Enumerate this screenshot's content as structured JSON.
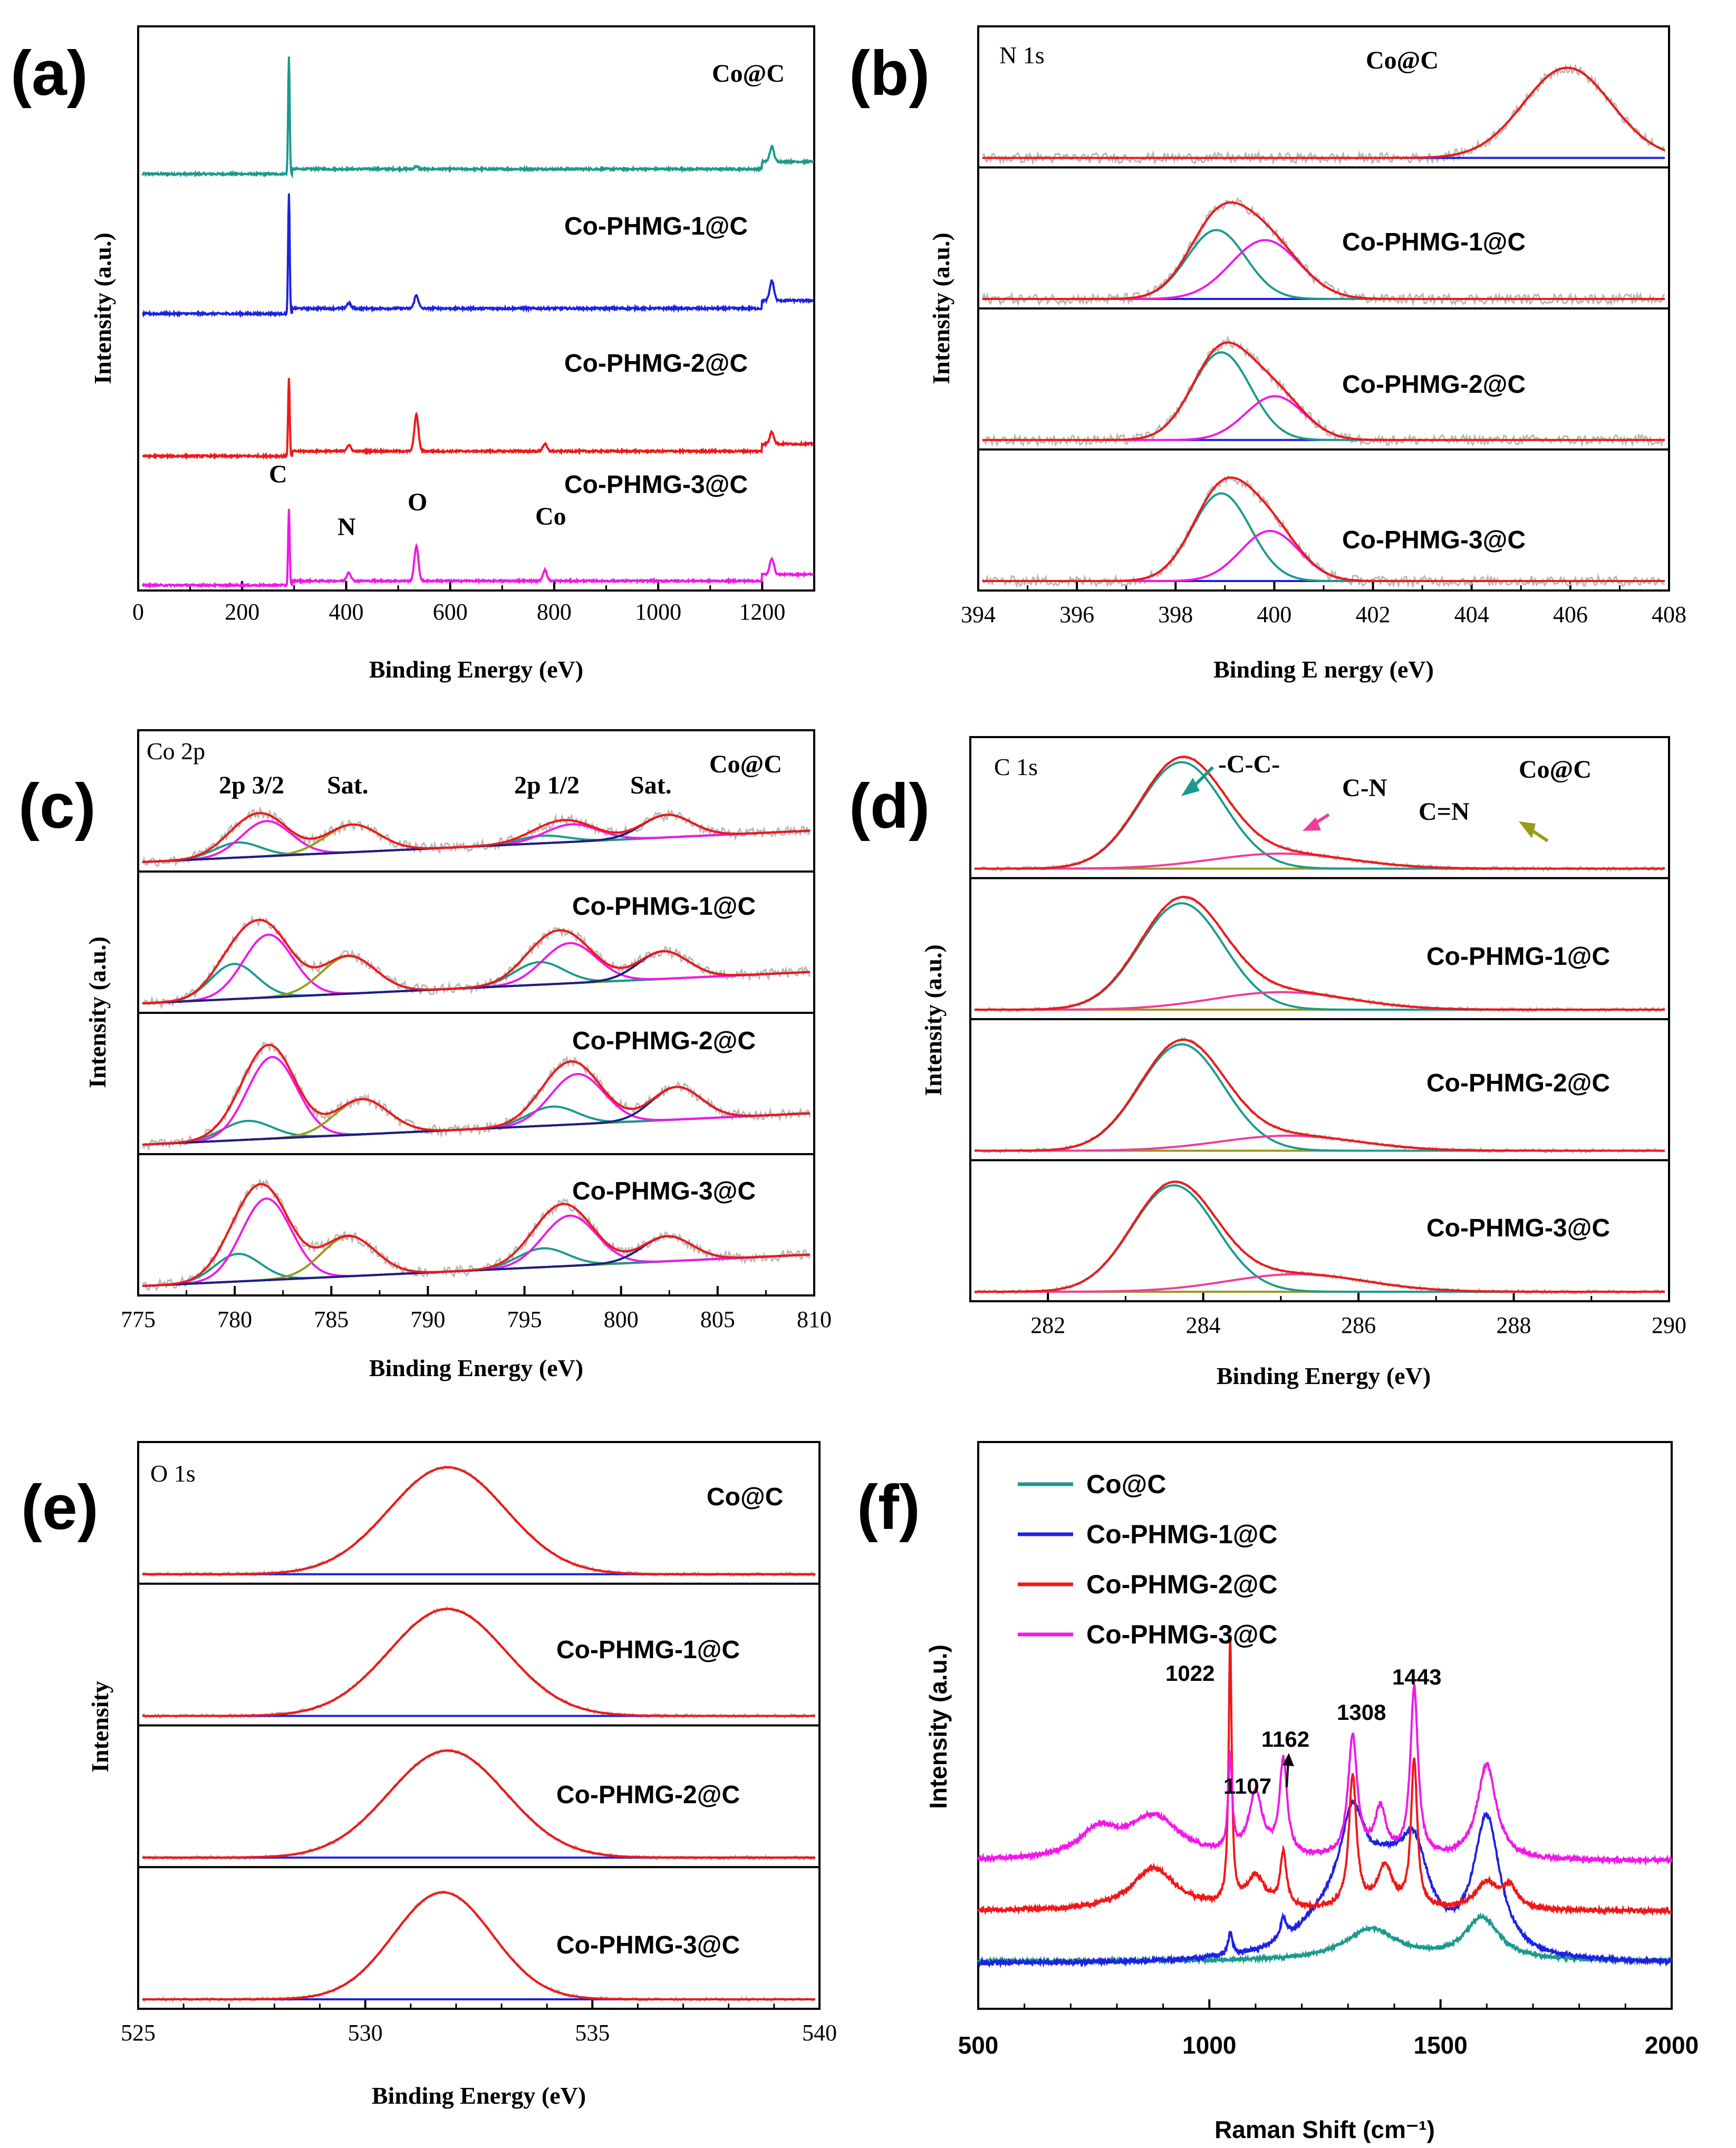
{
  "figure": {
    "panels": [
      "(a)",
      "(b)",
      "(c)",
      "(d)",
      "(e)",
      "(f)"
    ]
  },
  "colors": {
    "teal": "#1a9a8c",
    "blue": "#1e22e0",
    "red": "#f01818",
    "magenta": "#f018e8",
    "gray": "#b8b8b8",
    "olive": "#9a9a1a",
    "navy": "#1a2080",
    "pink": "#f03c9c"
  },
  "chart_data": [
    {
      "panel": "(a)",
      "type": "line",
      "xlabel": "Binding Energy (eV)",
      "ylabel": "Intensity (a.u.)",
      "xlim": [
        0,
        1300
      ],
      "xticks": [
        "0",
        "200",
        "400",
        "600",
        "800",
        "1000",
        "1200"
      ],
      "series": [
        {
          "name": "Co@C",
          "peaks": [
            {
              "x": 284,
              "h": 0.95
            },
            {
              "x": 531,
              "h": 0.02
            },
            {
              "x": 1220,
              "h": 0.12
            }
          ]
        },
        {
          "name": "Co-PHMG-1@C",
          "peaks": [
            {
              "x": 284,
              "h": 0.92
            },
            {
              "x": 400,
              "h": 0.04
            },
            {
              "x": 531,
              "h": 0.1
            },
            {
              "x": 1220,
              "h": 0.15
            }
          ]
        },
        {
          "name": "Co-PHMG-2@C",
          "peaks": [
            {
              "x": 284,
              "h": 0.65
            },
            {
              "x": 400,
              "h": 0.05
            },
            {
              "x": 531,
              "h": 0.3
            },
            {
              "x": 780,
              "h": 0.06
            },
            {
              "x": 1220,
              "h": 0.1
            }
          ]
        },
        {
          "name": "Co-PHMG-3@C",
          "peaks": [
            {
              "x": 284,
              "h": 0.7
            },
            {
              "x": 400,
              "h": 0.08
            },
            {
              "x": 531,
              "h": 0.32
            },
            {
              "x": 780,
              "h": 0.1
            },
            {
              "x": 1220,
              "h": 0.15
            }
          ]
        }
      ],
      "annotations": [
        "C",
        "N",
        "O",
        "Co"
      ]
    },
    {
      "panel": "(b)",
      "type": "line",
      "title": "N 1s",
      "xlabel": "Binding E nergy (eV)",
      "ylabel": "Intensity (a.u.)",
      "xlim": [
        394,
        408
      ],
      "xticks": [
        "394",
        "396",
        "398",
        "400",
        "402",
        "404",
        "406",
        "408"
      ],
      "samples": [
        {
          "name": "Co@C",
          "components": [
            {
              "x0": 406.0,
              "sigma": 0.9,
              "h": 0.72
            }
          ]
        },
        {
          "name": "Co-PHMG-1@C",
          "components": [
            {
              "x0": 398.8,
              "sigma": 0.6,
              "h": 0.55
            },
            {
              "x0": 399.8,
              "sigma": 0.7,
              "h": 0.47
            }
          ]
        },
        {
          "name": "Co-PHMG-2@C",
          "components": [
            {
              "x0": 398.9,
              "sigma": 0.6,
              "h": 0.7
            },
            {
              "x0": 400.0,
              "sigma": 0.6,
              "h": 0.35
            }
          ]
        },
        {
          "name": "Co-PHMG-3@C",
          "components": [
            {
              "x0": 398.9,
              "sigma": 0.6,
              "h": 0.7
            },
            {
              "x0": 399.9,
              "sigma": 0.6,
              "h": 0.4
            }
          ]
        }
      ]
    },
    {
      "panel": "(c)",
      "type": "line",
      "title": "Co 2p",
      "xlabel": "Binding Energy (eV)",
      "ylabel": "Intensity (a.u.)",
      "xlim": [
        775,
        810
      ],
      "xticks": [
        "775",
        "780",
        "785",
        "790",
        "795",
        "800",
        "805",
        "810"
      ],
      "peak_labels": [
        "2p 3/2",
        "Sat.",
        "2p 1/2",
        "Sat."
      ],
      "samples": [
        {
          "name": "Co@C",
          "components": [
            {
              "x0": 780.0,
              "sigma": 1.2,
              "h": 0.12
            },
            {
              "x0": 781.5,
              "sigma": 1.3,
              "h": 0.28
            },
            {
              "x0": 786.0,
              "sigma": 1.4,
              "h": 0.22
            },
            {
              "x0": 796.0,
              "sigma": 1.3,
              "h": 0.06
            },
            {
              "x0": 797.5,
              "sigma": 1.4,
              "h": 0.14
            },
            {
              "x0": 802.5,
              "sigma": 1.3,
              "h": 0.18
            }
          ]
        },
        {
          "name": "Co-PHMG-1@C",
          "components": [
            {
              "x0": 779.8,
              "sigma": 1.2,
              "h": 0.28
            },
            {
              "x0": 781.6,
              "sigma": 1.3,
              "h": 0.5
            },
            {
              "x0": 785.8,
              "sigma": 1.4,
              "h": 0.3
            },
            {
              "x0": 795.8,
              "sigma": 1.3,
              "h": 0.18
            },
            {
              "x0": 797.4,
              "sigma": 1.4,
              "h": 0.32
            },
            {
              "x0": 802.3,
              "sigma": 1.3,
              "h": 0.22
            }
          ]
        },
        {
          "name": "Co-PHMG-2@C",
          "components": [
            {
              "x0": 780.5,
              "sigma": 1.3,
              "h": 0.15
            },
            {
              "x0": 781.8,
              "sigma": 1.3,
              "h": 0.65
            },
            {
              "x0": 786.5,
              "sigma": 1.4,
              "h": 0.28
            },
            {
              "x0": 796.5,
              "sigma": 1.3,
              "h": 0.15
            },
            {
              "x0": 797.8,
              "sigma": 1.4,
              "h": 0.4
            },
            {
              "x0": 803.0,
              "sigma": 1.3,
              "h": 0.26
            }
          ]
        },
        {
          "name": "Co-PHMG-3@C",
          "components": [
            {
              "x0": 780.0,
              "sigma": 1.2,
              "h": 0.22
            },
            {
              "x0": 781.5,
              "sigma": 1.3,
              "h": 0.65
            },
            {
              "x0": 785.8,
              "sigma": 1.4,
              "h": 0.32
            },
            {
              "x0": 796.0,
              "sigma": 1.3,
              "h": 0.15
            },
            {
              "x0": 797.4,
              "sigma": 1.4,
              "h": 0.4
            },
            {
              "x0": 802.5,
              "sigma": 1.3,
              "h": 0.2
            }
          ]
        }
      ]
    },
    {
      "panel": "(d)",
      "type": "line",
      "title": "C 1s",
      "xlabel": "Binding Energy (eV)",
      "ylabel": "Intensity (a.u.)",
      "xlim": [
        281,
        290
      ],
      "xticks": [
        "282",
        "284",
        "286",
        "288",
        "290"
      ],
      "annotations": [
        "-C-C-",
        "C-N",
        "C=N"
      ],
      "samples": [
        {
          "name": "Co@C",
          "components": [
            {
              "x0": 283.7,
              "sigma": 0.55,
              "h": 0.85
            },
            {
              "x0": 285.0,
              "sigma": 0.9,
              "h": 0.12
            }
          ]
        },
        {
          "name": "Co-PHMG-1@C",
          "components": [
            {
              "x0": 283.7,
              "sigma": 0.55,
              "h": 0.85
            },
            {
              "x0": 285.0,
              "sigma": 0.9,
              "h": 0.14
            }
          ]
        },
        {
          "name": "Co-PHMG-2@C",
          "components": [
            {
              "x0": 283.7,
              "sigma": 0.55,
              "h": 0.85
            },
            {
              "x0": 285.1,
              "sigma": 0.9,
              "h": 0.12
            }
          ]
        },
        {
          "name": "Co-PHMG-3@C",
          "components": [
            {
              "x0": 283.6,
              "sigma": 0.55,
              "h": 0.85
            },
            {
              "x0": 285.2,
              "sigma": 0.9,
              "h": 0.14
            }
          ]
        }
      ]
    },
    {
      "panel": "(e)",
      "type": "line",
      "title": "O 1s",
      "xlabel": "Binding Energy (eV)",
      "ylabel": "Intensity",
      "xlim": [
        525,
        540
      ],
      "xticks": [
        "525",
        "530",
        "535",
        "540"
      ],
      "samples": [
        {
          "name": "Co@C",
          "components": [
            {
              "x0": 531.8,
              "sigma": 1.3,
              "h": 0.85
            }
          ]
        },
        {
          "name": "Co-PHMG-1@C",
          "components": [
            {
              "x0": 531.8,
              "sigma": 1.3,
              "h": 0.85
            }
          ]
        },
        {
          "name": "Co-PHMG-2@C",
          "components": [
            {
              "x0": 531.8,
              "sigma": 1.3,
              "h": 0.85
            }
          ]
        },
        {
          "name": "Co-PHMG-3@C",
          "components": [
            {
              "x0": 531.7,
              "sigma": 1.1,
              "h": 0.85
            }
          ]
        }
      ]
    },
    {
      "panel": "(f)",
      "type": "line",
      "xlabel": "Raman Shift (cm⁻¹)",
      "ylabel": "Intensity (a.u.)",
      "xlim": [
        500,
        2000
      ],
      "xticks": [
        "500",
        "1000",
        "1500",
        "2000"
      ],
      "legend": [
        "Co@C",
        "Co-PHMG-1@C",
        "Co-PHMG-2@C",
        "Co-PHMG-3@C"
      ],
      "peak_labels": [
        "1022",
        "1107",
        "1162",
        "1308",
        "1443"
      ]
    }
  ]
}
